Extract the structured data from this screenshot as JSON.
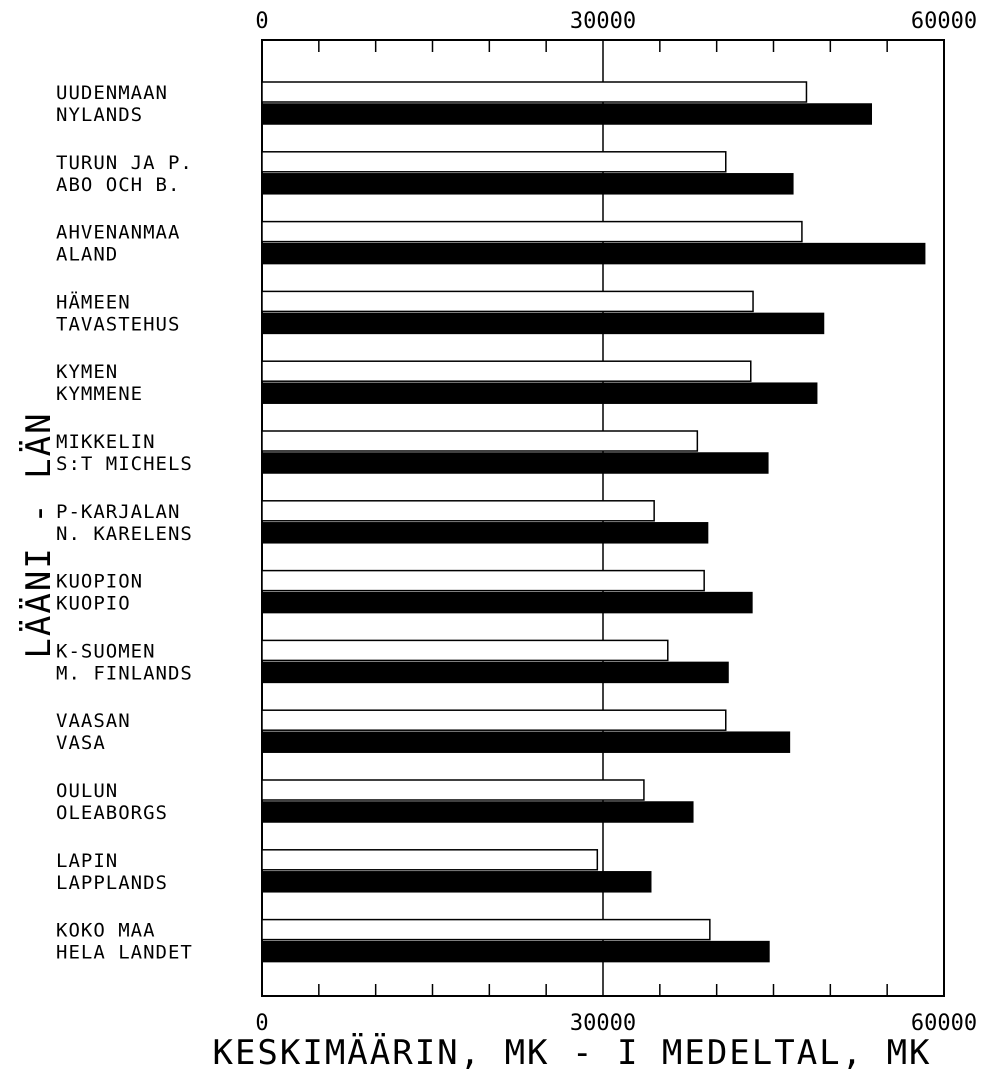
{
  "chart_data": {
    "type": "bar",
    "orientation": "horizontal",
    "categories": [
      [
        "UUDENMAAN",
        "NYLANDS"
      ],
      [
        "TURUN JA P.",
        "ABO OCH B."
      ],
      [
        "AHVENANMAA",
        "ALAND"
      ],
      [
        "HÄMEEN",
        "TAVASTEHUS"
      ],
      [
        "KYMEN",
        "KYMMENE"
      ],
      [
        "MIKKELIN",
        "S:T MICHELS"
      ],
      [
        "P-KARJALAN",
        "N. KARELENS"
      ],
      [
        "KUOPION",
        "KUOPIO"
      ],
      [
        "K-SUOMEN",
        "M. FINLANDS"
      ],
      [
        "VAASAN",
        "VASA"
      ],
      [
        "OULUN",
        "OLEABORGS"
      ],
      [
        "LAPIN",
        "LAPPLANDS"
      ],
      [
        "KOKO MAA",
        "HELA LANDET"
      ]
    ],
    "series": [
      {
        "fill": "#ffffff",
        "values": [
          47900,
          40800,
          47500,
          43200,
          43000,
          38300,
          34500,
          38900,
          35700,
          40800,
          33600,
          29500,
          39400
        ]
      },
      {
        "fill": "#000000",
        "values": [
          53600,
          46700,
          58300,
          49400,
          48800,
          44500,
          39200,
          43100,
          41000,
          46400,
          37900,
          34200,
          44600
        ]
      }
    ],
    "xlim": [
      0,
      60000
    ],
    "major_ticks": [
      0,
      30000,
      60000
    ],
    "major_tick_labels": [
      "0",
      "30000",
      "60000"
    ],
    "minor_tick_step": 5000,
    "xlabel": "KESKIMÄÄRIN, MK - I MEDELTAL, MK",
    "ylabel": "LÄÄNI - LÄN",
    "grid": "vertical line at 30000",
    "colors": {
      "ink": "#000000",
      "paper": "#ffffff"
    }
  }
}
